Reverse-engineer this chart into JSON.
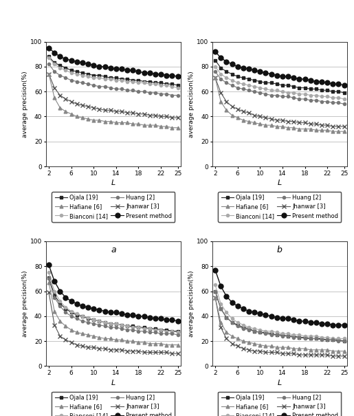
{
  "L_values": [
    2,
    3,
    4,
    5,
    6,
    7,
    8,
    9,
    10,
    11,
    12,
    13,
    14,
    15,
    16,
    17,
    18,
    19,
    20,
    21,
    22,
    23,
    24,
    25
  ],
  "panel_a": {
    "Ojala": [
      88,
      83,
      81,
      79,
      77,
      76,
      75,
      74,
      73,
      73,
      72,
      71,
      71,
      70,
      70,
      69,
      69,
      68,
      68,
      67,
      67,
      66,
      66,
      65
    ],
    "Hafiane": [
      74,
      55,
      47,
      44,
      42,
      40,
      39,
      38,
      37,
      37,
      36,
      36,
      35,
      35,
      35,
      34,
      34,
      33,
      33,
      33,
      32,
      32,
      31,
      31
    ],
    "Bianconi": [
      87,
      82,
      79,
      77,
      75,
      74,
      73,
      72,
      71,
      71,
      70,
      70,
      69,
      69,
      68,
      68,
      67,
      67,
      66,
      66,
      65,
      65,
      64,
      63
    ],
    "Huang": [
      82,
      76,
      73,
      71,
      69,
      68,
      67,
      66,
      65,
      64,
      64,
      63,
      62,
      62,
      61,
      61,
      60,
      60,
      59,
      59,
      58,
      58,
      57,
      57
    ],
    "Jhanwar": [
      74,
      63,
      57,
      54,
      52,
      50,
      49,
      48,
      47,
      46,
      45,
      45,
      44,
      44,
      43,
      43,
      42,
      42,
      41,
      41,
      40,
      40,
      39,
      39
    ],
    "Present": [
      95,
      91,
      88,
      86,
      85,
      84,
      83,
      82,
      81,
      80,
      80,
      79,
      78,
      78,
      77,
      77,
      76,
      75,
      75,
      74,
      74,
      73,
      73,
      72
    ]
  },
  "panel_b": {
    "Ojala": [
      85,
      79,
      76,
      74,
      72,
      71,
      70,
      69,
      68,
      67,
      67,
      66,
      65,
      65,
      64,
      63,
      63,
      62,
      62,
      61,
      61,
      60,
      60,
      59
    ],
    "Hafiane": [
      71,
      52,
      45,
      41,
      39,
      37,
      36,
      35,
      34,
      33,
      33,
      32,
      32,
      31,
      31,
      30,
      30,
      30,
      29,
      29,
      29,
      28,
      28,
      28
    ],
    "Bianconi": [
      80,
      74,
      71,
      69,
      67,
      66,
      65,
      64,
      63,
      62,
      61,
      61,
      60,
      59,
      59,
      58,
      58,
      57,
      57,
      56,
      56,
      55,
      55,
      54
    ],
    "Huang": [
      76,
      70,
      67,
      65,
      63,
      62,
      61,
      60,
      59,
      58,
      57,
      57,
      56,
      56,
      55,
      54,
      54,
      53,
      53,
      52,
      52,
      51,
      51,
      50
    ],
    "Jhanwar": [
      71,
      59,
      52,
      48,
      46,
      44,
      43,
      41,
      40,
      39,
      38,
      37,
      37,
      36,
      36,
      35,
      35,
      34,
      34,
      33,
      33,
      32,
      32,
      32
    ],
    "Present": [
      92,
      87,
      84,
      82,
      80,
      79,
      78,
      77,
      76,
      75,
      74,
      73,
      72,
      72,
      71,
      70,
      70,
      69,
      68,
      68,
      67,
      66,
      66,
      65
    ]
  },
  "panel_c": {
    "Ojala": [
      71,
      57,
      50,
      46,
      43,
      41,
      40,
      38,
      37,
      36,
      35,
      34,
      34,
      33,
      32,
      32,
      31,
      31,
      30,
      30,
      29,
      29,
      28,
      28
    ],
    "Hafiane": [
      67,
      44,
      36,
      32,
      29,
      27,
      26,
      25,
      24,
      23,
      22,
      22,
      21,
      21,
      20,
      20,
      19,
      19,
      18,
      18,
      18,
      17,
      17,
      17
    ],
    "Bianconi": [
      75,
      60,
      52,
      47,
      44,
      42,
      40,
      39,
      37,
      36,
      35,
      34,
      34,
      33,
      32,
      31,
      31,
      30,
      30,
      29,
      29,
      28,
      28,
      27
    ],
    "Huang": [
      70,
      55,
      48,
      43,
      40,
      38,
      36,
      35,
      34,
      33,
      32,
      31,
      31,
      30,
      29,
      29,
      28,
      28,
      27,
      27,
      26,
      26,
      26,
      25
    ],
    "Jhanwar": [
      59,
      33,
      24,
      21,
      19,
      17,
      16,
      15,
      15,
      14,
      14,
      13,
      13,
      13,
      12,
      12,
      12,
      11,
      11,
      11,
      11,
      11,
      10,
      10
    ],
    "Present": [
      81,
      68,
      60,
      55,
      52,
      50,
      48,
      47,
      46,
      45,
      44,
      43,
      43,
      42,
      41,
      41,
      40,
      40,
      39,
      38,
      38,
      37,
      37,
      36
    ]
  },
  "panel_d": {
    "Ojala": [
      60,
      46,
      39,
      35,
      33,
      31,
      30,
      28,
      27,
      27,
      26,
      25,
      25,
      24,
      24,
      23,
      23,
      22,
      22,
      22,
      21,
      21,
      21,
      20
    ],
    "Hafiane": [
      55,
      35,
      27,
      24,
      22,
      20,
      19,
      18,
      17,
      16,
      16,
      15,
      15,
      15,
      14,
      14,
      14,
      13,
      13,
      13,
      13,
      12,
      12,
      12
    ],
    "Bianconi": [
      65,
      50,
      43,
      38,
      35,
      33,
      31,
      30,
      29,
      28,
      28,
      27,
      26,
      26,
      25,
      25,
      24,
      24,
      24,
      23,
      23,
      22,
      22,
      22
    ],
    "Huang": [
      60,
      46,
      39,
      35,
      32,
      30,
      29,
      28,
      27,
      26,
      25,
      25,
      24,
      24,
      23,
      23,
      22,
      22,
      22,
      21,
      21,
      21,
      20,
      20
    ],
    "Jhanwar": [
      55,
      31,
      22,
      18,
      16,
      14,
      13,
      12,
      12,
      11,
      11,
      11,
      10,
      10,
      10,
      9,
      9,
      9,
      9,
      9,
      9,
      8,
      8,
      8
    ],
    "Present": [
      77,
      64,
      56,
      51,
      48,
      46,
      44,
      43,
      42,
      41,
      40,
      39,
      38,
      38,
      37,
      36,
      36,
      35,
      35,
      34,
      34,
      33,
      33,
      33
    ]
  },
  "ylabel": "average precision(%)",
  "xlabel": "L",
  "ylim": [
    0,
    100
  ],
  "yticks": [
    0,
    20,
    40,
    60,
    80,
    100
  ],
  "xticks": [
    2,
    6,
    10,
    14,
    18,
    22,
    25
  ],
  "grid_color": "#bbbbbb",
  "bg_color": "#ffffff"
}
